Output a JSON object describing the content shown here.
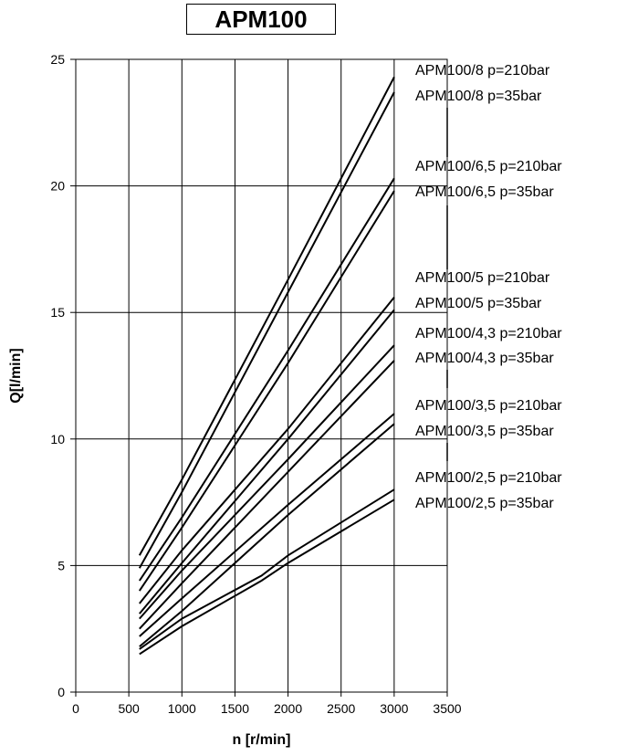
{
  "title": "APM100",
  "chart_data": {
    "type": "line",
    "title": "APM100",
    "xlabel": "n [r/min]",
    "ylabel": "Q[l/min]",
    "xlim": [
      0,
      3500
    ],
    "ylim": [
      0,
      25
    ],
    "x_ticks": [
      "0",
      "500",
      "1000",
      "1500",
      "2000",
      "2500",
      "3000",
      "3500"
    ],
    "y_ticks": [
      "0",
      "5",
      "10",
      "15",
      "20",
      "25"
    ],
    "grid": true,
    "series": [
      {
        "name": "APM100/8 p=210bar",
        "x": [
          600,
          1000,
          2000,
          3000
        ],
        "y": [
          5.4,
          8.4,
          16.3,
          24.3
        ]
      },
      {
        "name": "APM100/8 p=35bar",
        "x": [
          600,
          1000,
          2000,
          3000
        ],
        "y": [
          4.9,
          7.9,
          15.8,
          23.7
        ]
      },
      {
        "name": "APM100/6,5 p=210bar",
        "x": [
          600,
          1000,
          2000,
          3000
        ],
        "y": [
          4.4,
          6.9,
          13.5,
          20.3
        ]
      },
      {
        "name": "APM100/6,5 p=35bar",
        "x": [
          600,
          1000,
          2000,
          3000
        ],
        "y": [
          4.0,
          6.5,
          13.0,
          19.8
        ]
      },
      {
        "name": "APM100/5 p=210bar",
        "x": [
          600,
          1000,
          2000,
          3000
        ],
        "y": [
          3.5,
          5.6,
          10.4,
          15.6
        ]
      },
      {
        "name": "APM100/5 p=35bar",
        "x": [
          600,
          1000,
          2000,
          3000
        ],
        "y": [
          3.1,
          5.1,
          10.0,
          15.1
        ]
      },
      {
        "name": "APM100/4,3 p=210bar",
        "x": [
          600,
          1000,
          2000,
          3000
        ],
        "y": [
          2.9,
          4.8,
          9.2,
          13.7
        ]
      },
      {
        "name": "APM100/4,3 p=35bar",
        "x": [
          600,
          1000,
          2000,
          3000
        ],
        "y": [
          2.5,
          4.3,
          8.7,
          13.1
        ]
      },
      {
        "name": "APM100/3,5 p=210bar",
        "x": [
          600,
          1000,
          2000,
          3000
        ],
        "y": [
          2.2,
          3.7,
          7.4,
          11.0
        ]
      },
      {
        "name": "APM100/3,5 p=35bar",
        "x": [
          600,
          1000,
          2000,
          3000
        ],
        "y": [
          1.8,
          3.2,
          7.0,
          10.6
        ]
      },
      {
        "name": "APM100/2,5 p=210bar",
        "x": [
          600,
          1000,
          1750,
          2000,
          3000
        ],
        "y": [
          1.7,
          2.9,
          4.6,
          5.4,
          8.0
        ]
      },
      {
        "name": "APM100/2,5 p=35bar",
        "x": [
          600,
          1000,
          1750,
          2000,
          3000
        ],
        "y": [
          1.5,
          2.6,
          4.4,
          5.1,
          7.6
        ]
      }
    ]
  }
}
